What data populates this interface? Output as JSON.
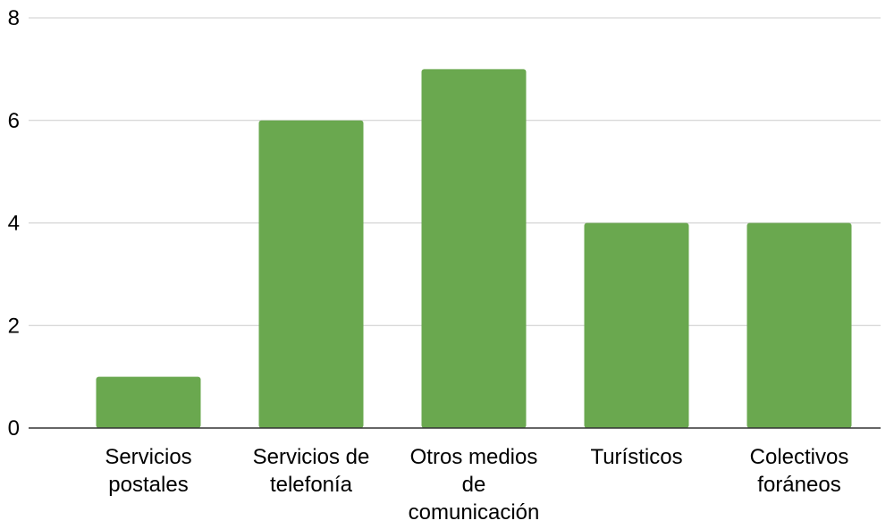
{
  "chart_data": {
    "type": "bar",
    "title": "",
    "xlabel": "",
    "ylabel": "",
    "categories": [
      [
        "Servicios",
        "postales"
      ],
      [
        "Servicios de",
        "telefonía"
      ],
      [
        "Otros medios",
        "de",
        "comunicación"
      ],
      [
        "Turísticos"
      ],
      [
        "Colectivos",
        "foráneos"
      ]
    ],
    "values": [
      1,
      6,
      7,
      4,
      4
    ],
    "ylim": [
      0,
      8
    ],
    "yticks": [
      0,
      2,
      4,
      6,
      8
    ],
    "grid": true,
    "legend": "none",
    "colors": {
      "bar": "#6aa84f",
      "grid": "#cccccc",
      "axis": "#333333",
      "text": "#000000"
    }
  }
}
